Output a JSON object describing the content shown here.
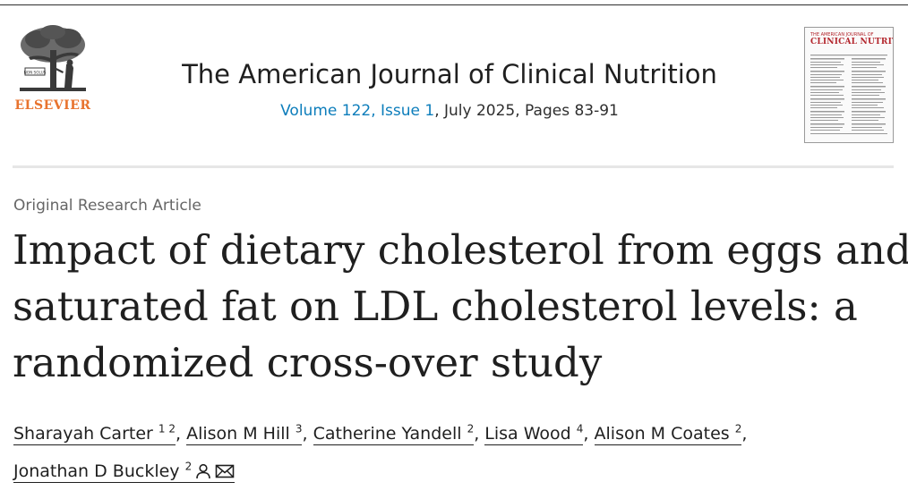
{
  "publisher": {
    "name": "ELSEVIER",
    "logo_icon": "elsevier-tree-logo",
    "logo_motto": "NON SOLUS",
    "brand_color": "#e8732e"
  },
  "journal": {
    "title": "The American Journal of Clinical Nutrition",
    "volume_link": "Volume 122, Issue 1",
    "date_pages": ", July 2025, Pages 83-91",
    "link_color": "#0c7dbb",
    "cover": {
      "icon": "journal-cover-thumbnail",
      "top_line": "THE AMERICAN JOURNAL OF",
      "title": "CLINICAL NUTRITION",
      "title_color": "#b3262d"
    }
  },
  "article": {
    "type": "Original Research Article",
    "title_lines": [
      "Impact of dietary cholesterol from eggs and",
      "saturated fat on LDL cholesterol levels: a",
      "randomized cross-over study"
    ]
  },
  "authors": [
    {
      "name": "Sharayah Carter",
      "sup": "1 2"
    },
    {
      "name": "Alison M Hill",
      "sup": "3"
    },
    {
      "name": "Catherine Yandell",
      "sup": "2"
    },
    {
      "name": "Lisa Wood",
      "sup": "4"
    },
    {
      "name": "Alison M Coates",
      "sup": "2"
    },
    {
      "name": "Jonathan D Buckley",
      "sup": "2",
      "icons": [
        "person-icon",
        "envelope-icon"
      ]
    }
  ]
}
